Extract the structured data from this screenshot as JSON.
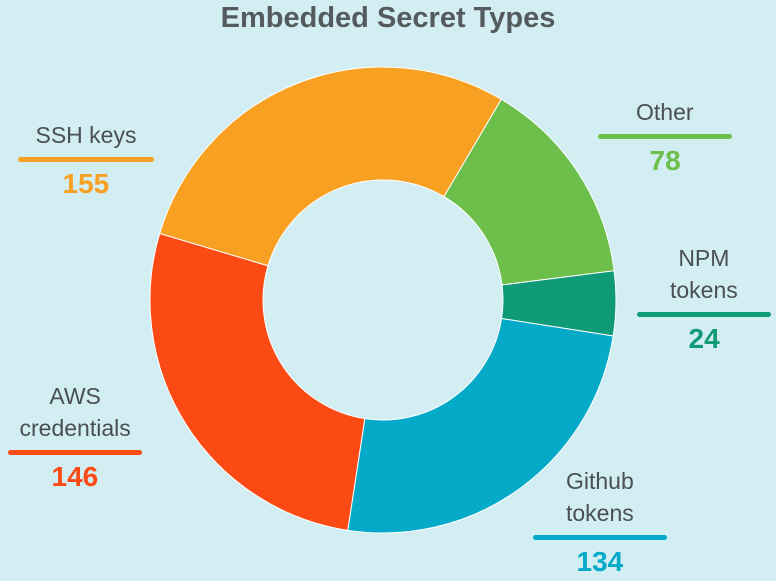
{
  "chart_data": {
    "type": "donut",
    "title": "Embedded Secret Types",
    "categories": [
      "Other",
      "NPM tokens",
      "Github tokens",
      "AWS credentials",
      "SSH keys"
    ],
    "values": [
      78,
      24,
      134,
      146,
      155
    ],
    "colors": [
      "#6cbf4a",
      "#0f9a78",
      "#04aac8",
      "#fc4a14",
      "#f7a021"
    ]
  }
}
